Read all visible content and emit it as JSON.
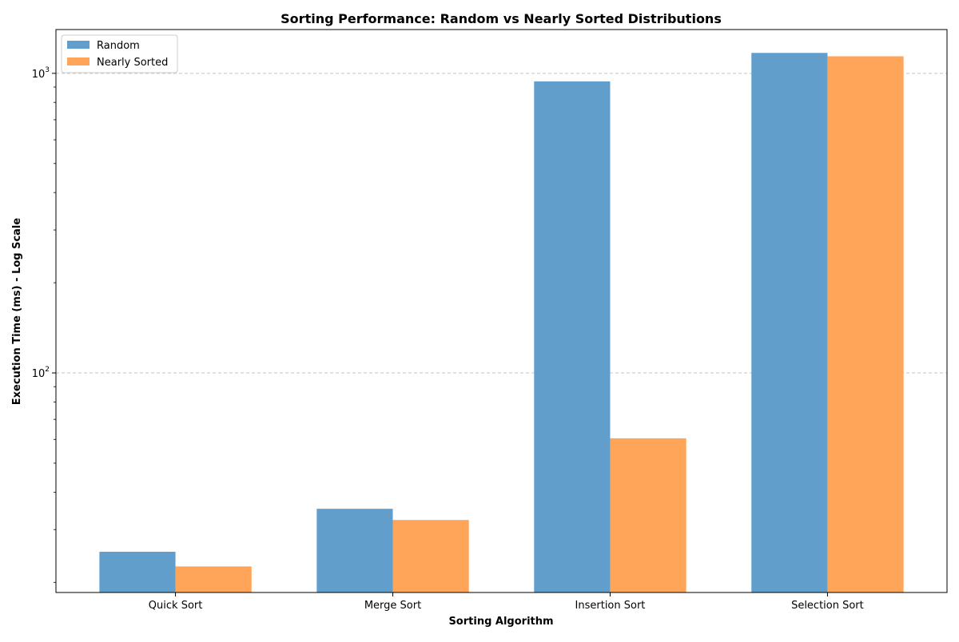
{
  "chart_data": {
    "type": "bar",
    "title": "Sorting Performance: Random vs Nearly Sorted Distributions",
    "xlabel": "Sorting Algorithm",
    "ylabel": "Execution Time (ms) - Log Scale",
    "yscale": "log",
    "ylim": [
      18.5,
      1400
    ],
    "yticks": [
      {
        "value": 100,
        "base": "10",
        "exp": "2"
      },
      {
        "value": 1000,
        "base": "10",
        "exp": "3"
      }
    ],
    "grid": "y-major-dashed",
    "legend_position": "top-left",
    "categories": [
      "Quick Sort",
      "Merge Sort",
      "Insertion Sort",
      "Selection Sort"
    ],
    "series": [
      {
        "name": "Random",
        "color": "#629ecb",
        "values": [
          25.3,
          35.2,
          940,
          1170
        ]
      },
      {
        "name": "Nearly Sorted",
        "color": "#fea55a",
        "values": [
          22.6,
          32.3,
          60.5,
          1140
        ]
      }
    ]
  }
}
